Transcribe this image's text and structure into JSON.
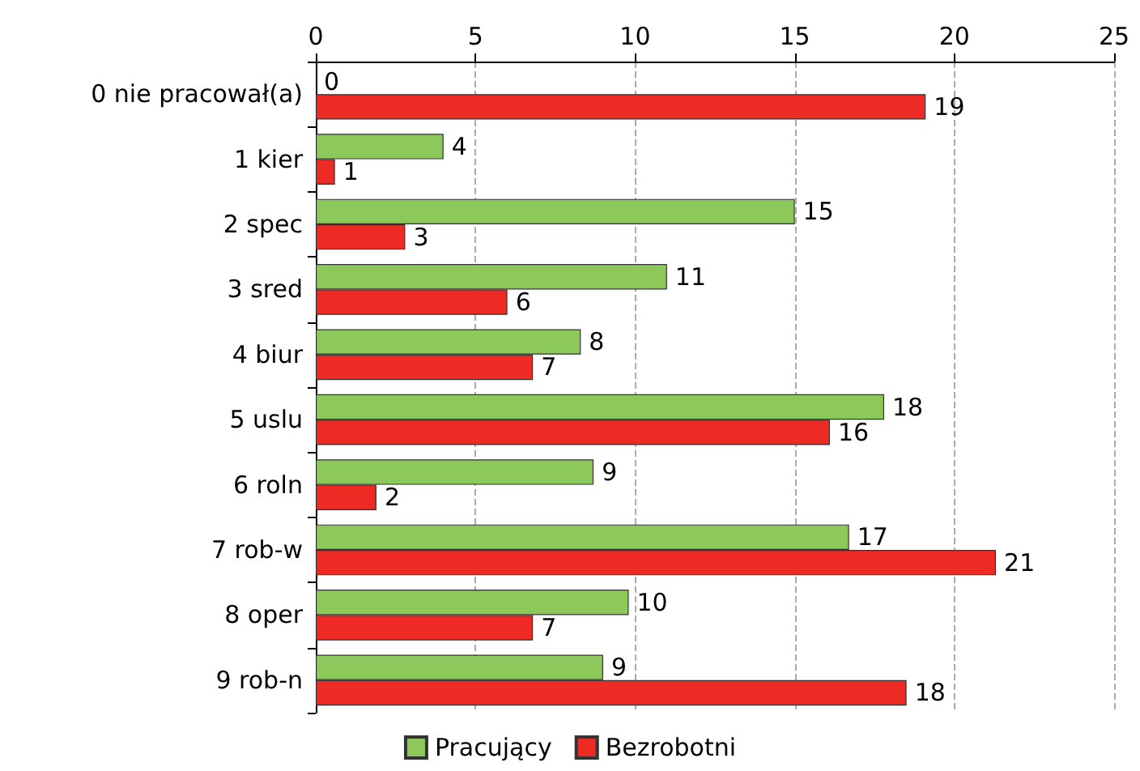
{
  "chart_data": {
    "type": "bar",
    "orientation": "horizontal",
    "categories": [
      "0 nie pracował(a)",
      "1 kier",
      "2 spec",
      "3 sred",
      "4 biur",
      "5 uslu",
      "6 roln",
      "7 rob-w",
      "8 oper",
      "9 rob-n"
    ],
    "series": [
      {
        "name": "Pracujący",
        "color": "#8cc85a",
        "values": [
          0,
          4.0,
          15.0,
          11.0,
          8.3,
          17.8,
          8.7,
          16.7,
          9.8,
          9.0
        ],
        "value_labels": [
          "0",
          "4",
          "15",
          "11",
          "8",
          "18",
          "9",
          "17",
          "10",
          "9"
        ]
      },
      {
        "name": "Bezrobotni",
        "color": "#ee2a24",
        "values": [
          19.1,
          0.6,
          2.8,
          6.0,
          6.8,
          16.1,
          1.9,
          21.3,
          6.8,
          18.5
        ],
        "value_labels": [
          "19",
          "1",
          "3",
          "6",
          "7",
          "16",
          "2",
          "21",
          "7",
          "18"
        ]
      }
    ],
    "xlim": [
      0,
      25
    ],
    "xticks": [
      0,
      5,
      10,
      15,
      20,
      25
    ],
    "grid": "x",
    "legend": "bottom"
  }
}
